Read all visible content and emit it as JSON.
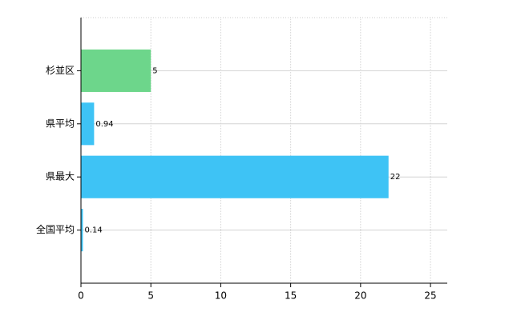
{
  "chart_data": {
    "type": "bar",
    "orientation": "horizontal",
    "categories": [
      "杉並区",
      "県平均",
      "県最大",
      "全国平均"
    ],
    "values": [
      5,
      0.94,
      22,
      0.14
    ],
    "colors": [
      "#6dd68b",
      "#3ec3f5",
      "#3ec3f5",
      "#3ec3f5"
    ],
    "xlim": [
      0,
      26.2
    ],
    "xticks": [
      0,
      5,
      10,
      15,
      20,
      25
    ],
    "grid": true
  }
}
